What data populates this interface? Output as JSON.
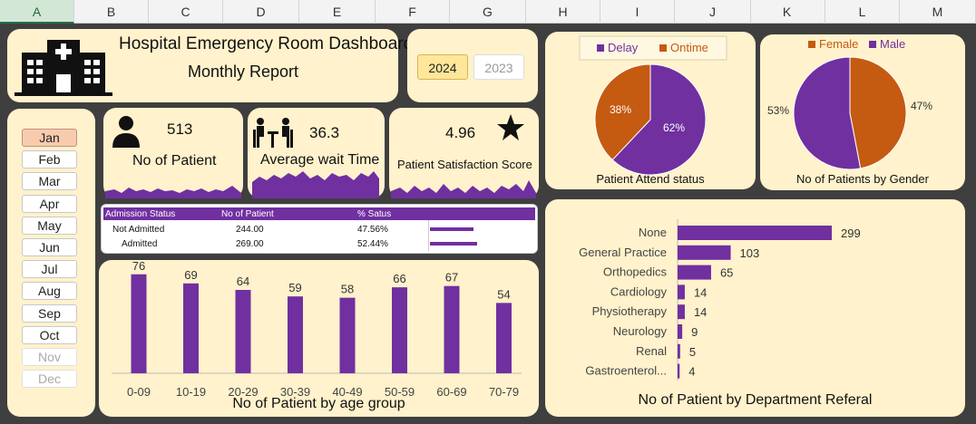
{
  "columns": [
    "A",
    "B",
    "C",
    "D",
    "E",
    "F",
    "G",
    "H",
    "I",
    "J",
    "K",
    "L",
    "M"
  ],
  "colors": {
    "purple": "#7030a0",
    "orange": "#c55a11",
    "card": "#fff2cc",
    "bg": "#3f3f3f"
  },
  "header": {
    "title": "Hospital Emergency Room Dashboard",
    "subtitle": "Monthly Report",
    "icon": "hospital-icon"
  },
  "years": {
    "active": "2024",
    "inactive": "2023"
  },
  "months": [
    {
      "label": "Jan",
      "state": "selected"
    },
    {
      "label": "Feb",
      "state": "normal"
    },
    {
      "label": "Mar",
      "state": "normal"
    },
    {
      "label": "Apr",
      "state": "normal"
    },
    {
      "label": "May",
      "state": "normal"
    },
    {
      "label": "Jun",
      "state": "normal"
    },
    {
      "label": "Jul",
      "state": "normal"
    },
    {
      "label": "Aug",
      "state": "normal"
    },
    {
      "label": "Sep",
      "state": "normal"
    },
    {
      "label": "Oct",
      "state": "normal"
    },
    {
      "label": "Nov",
      "state": "disabled"
    },
    {
      "label": "Dec",
      "state": "disabled"
    }
  ],
  "kpis": {
    "patients": {
      "value": "513",
      "label": "No of Patient",
      "icon": "person-icon"
    },
    "wait": {
      "value": "36.3",
      "label": "Average wait Time",
      "icon": "waiting-room-icon"
    },
    "satisfaction": {
      "value": "4.96",
      "label": "Patient Satisfaction Score",
      "icon": "star-icon"
    }
  },
  "admission": {
    "headers": [
      "Admission Status",
      "No of Patient",
      "% Satus"
    ],
    "rows": [
      {
        "status": "Not Admitted",
        "count": "244.00",
        "pct": "47.56%",
        "share": 0.4756
      },
      {
        "status": "Admitted",
        "count": "269.00",
        "pct": "52.44%",
        "share": 0.5244
      }
    ]
  },
  "chart_data": [
    {
      "type": "bar",
      "title": "No of Patient by age group",
      "categories": [
        "0-09",
        "10-19",
        "20-29",
        "30-39",
        "40-49",
        "50-59",
        "60-69",
        "70-79"
      ],
      "values": [
        76,
        69,
        64,
        59,
        58,
        66,
        67,
        54
      ],
      "ylim": [
        0,
        80
      ]
    },
    {
      "type": "pie",
      "title": "Patient Attend status",
      "labels": [
        "Delay",
        "Ontime"
      ],
      "values": [
        62,
        38
      ],
      "value_labels": [
        "62%",
        "38%"
      ],
      "colors": [
        "#7030a0",
        "#c55a11"
      ],
      "legend": "top"
    },
    {
      "type": "pie",
      "title": "No of Patients by Gender",
      "labels": [
        "Female",
        "Male"
      ],
      "values": [
        47,
        53
      ],
      "value_labels": [
        "47%",
        "53%"
      ],
      "colors": [
        "#c55a11",
        "#7030a0"
      ],
      "legend": "top"
    },
    {
      "type": "bar",
      "orientation": "horizontal",
      "title": "No of Patient by Department Referal",
      "categories": [
        "None",
        "General Practice",
        "Orthopedics",
        "Cardiology",
        "Physiotherapy",
        "Neurology",
        "Renal",
        "Gastroenterol..."
      ],
      "values": [
        299,
        103,
        65,
        14,
        14,
        9,
        5,
        4
      ]
    }
  ]
}
